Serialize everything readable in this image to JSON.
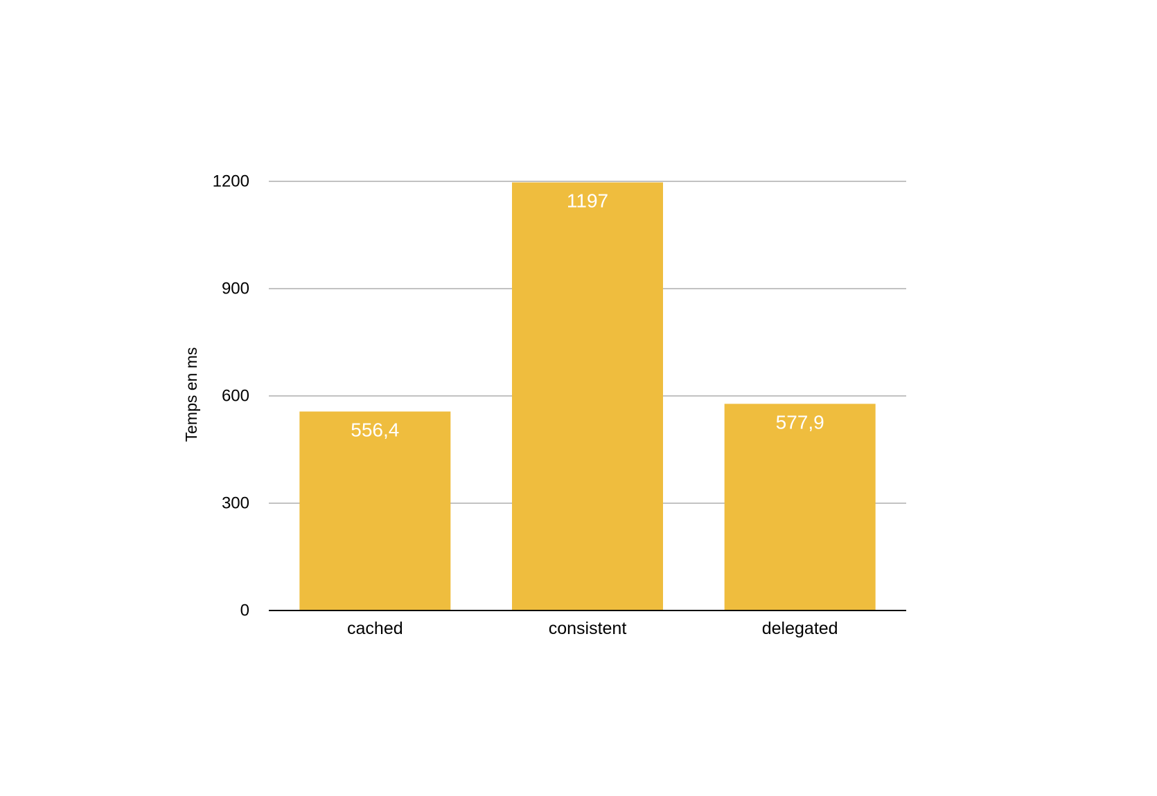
{
  "chart_data": {
    "type": "bar",
    "title": "",
    "xlabel": "",
    "ylabel": "Temps en ms",
    "categories": [
      "cached",
      "consistent",
      "delegated"
    ],
    "values": [
      556.4,
      1197,
      577.9
    ],
    "value_labels": [
      "556,4",
      "1197",
      "577,9"
    ],
    "ylim": [
      0,
      1200
    ],
    "yticks": [
      0,
      300,
      600,
      900,
      1200
    ],
    "grid": true,
    "legend": "none",
    "colors": {
      "bar": "#EFBD3E",
      "grid": "#C2C2C2",
      "axis": "#000000",
      "value_label": "#FFFFFF"
    }
  }
}
